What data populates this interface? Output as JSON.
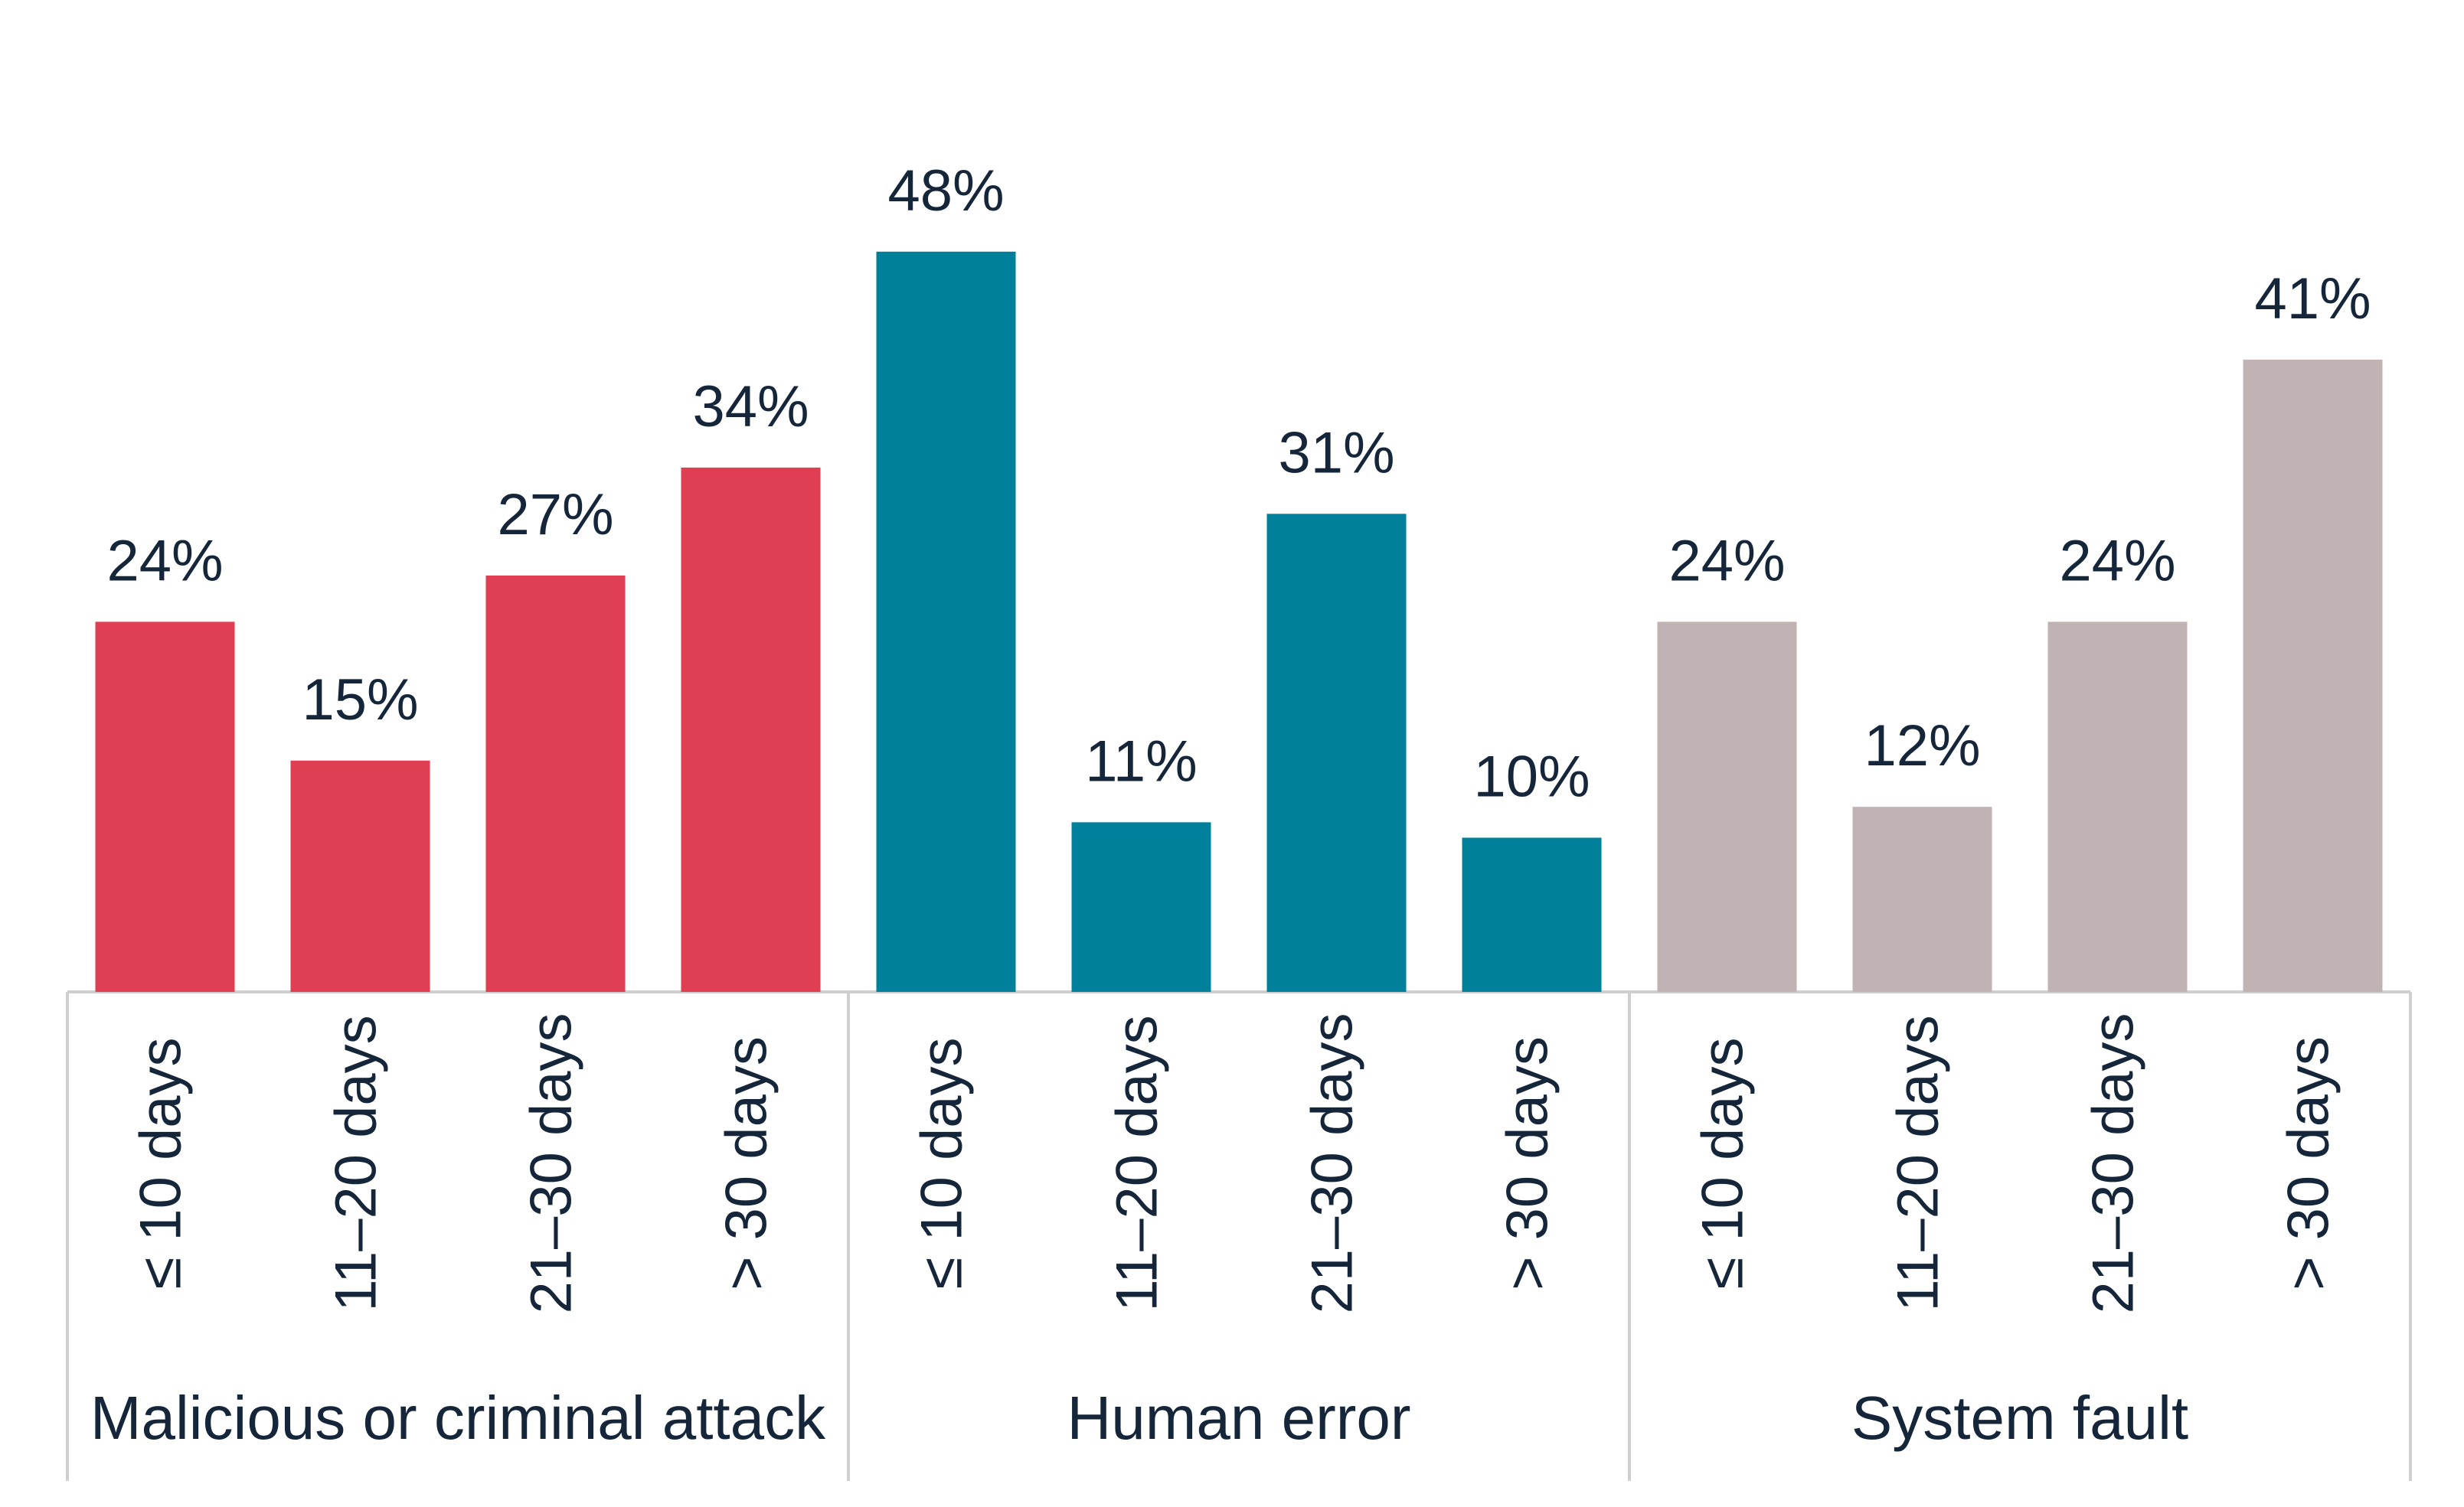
{
  "chart_data": {
    "type": "bar",
    "title": "",
    "xlabel": "",
    "ylabel": "",
    "ylim": [
      0,
      50
    ],
    "grid": false,
    "legend": "none",
    "value_suffix": "%",
    "groups": [
      {
        "name": "Malicious or criminal attack",
        "color": "#e03e52",
        "categories": [
          "≤ 10 days",
          "11–20 days",
          "21–30 days",
          "> 30 days"
        ],
        "values": [
          24,
          15,
          27,
          34
        ],
        "labels": [
          "24%",
          "15%",
          "27%",
          "34%"
        ]
      },
      {
        "name": "Human error",
        "color": "#00809b",
        "categories": [
          "≤ 10 days",
          "11–20 days",
          "21–30 days",
          "> 30 days"
        ],
        "values": [
          48,
          11,
          31,
          10
        ],
        "labels": [
          "48%",
          "11%",
          "31%",
          "10%"
        ]
      },
      {
        "name": "System fault",
        "color": "#c1b2b4",
        "categories": [
          "≤ 10 days",
          "11–20 days",
          "21–30 days",
          "> 30 days"
        ],
        "values": [
          24,
          12,
          24,
          41
        ],
        "labels": [
          "24%",
          "12%",
          "24%",
          "41%"
        ]
      }
    ]
  }
}
